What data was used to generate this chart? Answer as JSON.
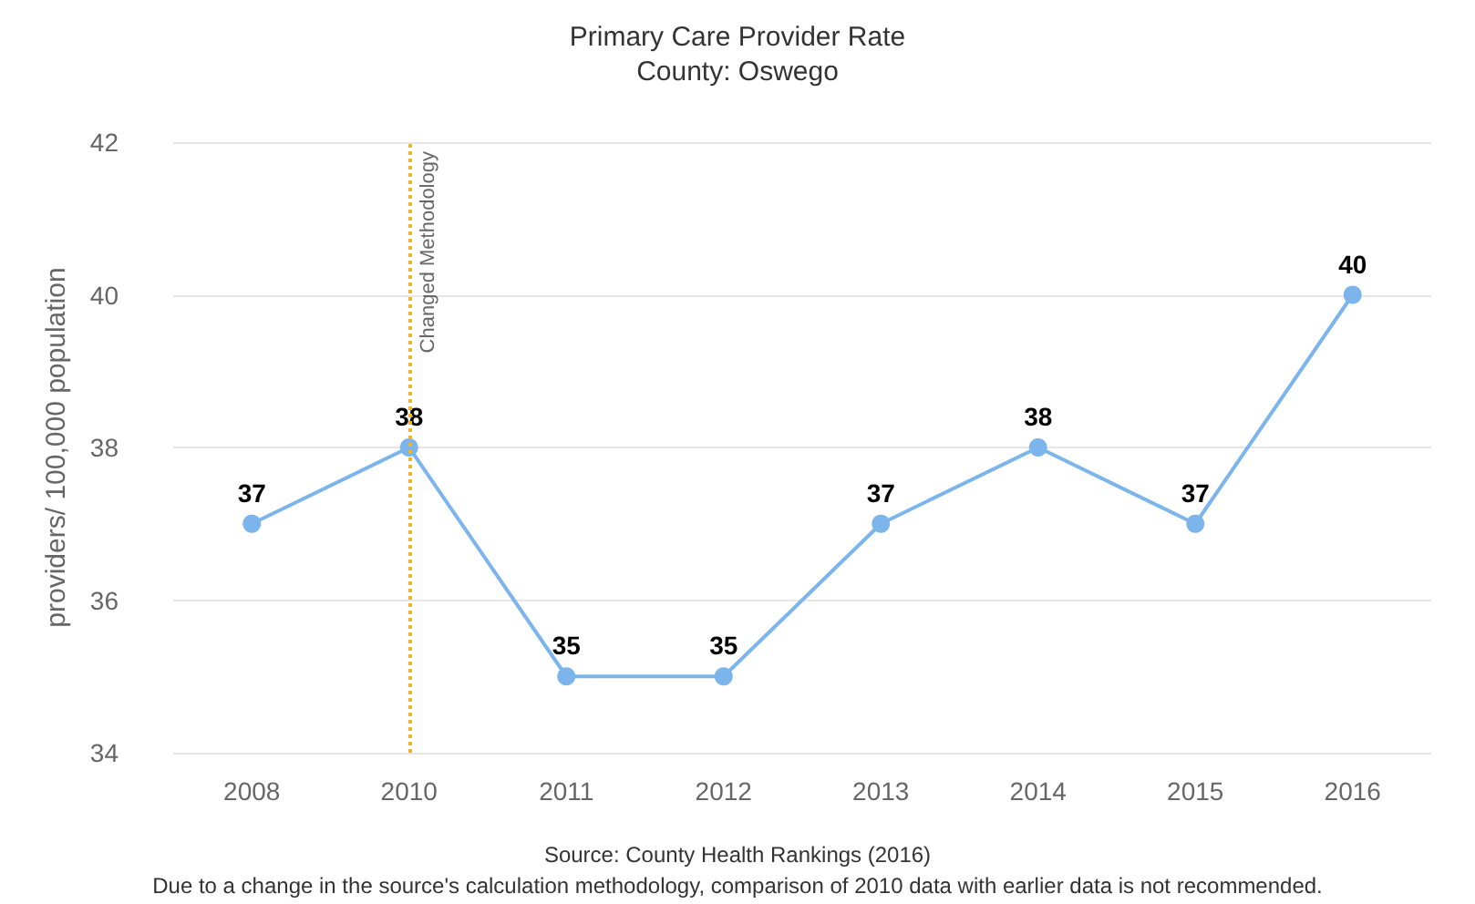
{
  "chart_data": {
    "type": "line",
    "title": "Primary Care Provider Rate",
    "subtitle": "County: Oswego",
    "ylabel": "providers/ 100,000 population",
    "categories": [
      "2008",
      "2010",
      "2011",
      "2012",
      "2013",
      "2014",
      "2015",
      "2016"
    ],
    "series": [
      {
        "color": "#7cb5ec",
        "values": [
          37,
          38,
          35,
          35,
          37,
          38,
          37,
          40
        ]
      }
    ],
    "ylim": [
      34,
      42
    ],
    "yticks": [
      34,
      36,
      38,
      40,
      42
    ],
    "grid": "y",
    "data_labels": true,
    "marker": "circle",
    "line_style": "solid",
    "ref_lines": [
      {
        "axis": "x",
        "value": "2010",
        "label": "Changed Methodology",
        "color": "#f0b42c",
        "line_style": "dotted"
      }
    ],
    "annotations": [
      "Source: County Health Rankings (2016)",
      "Due to a change in the source's calculation methodology, comparison of 2010 data with earlier data is not recommended."
    ]
  }
}
